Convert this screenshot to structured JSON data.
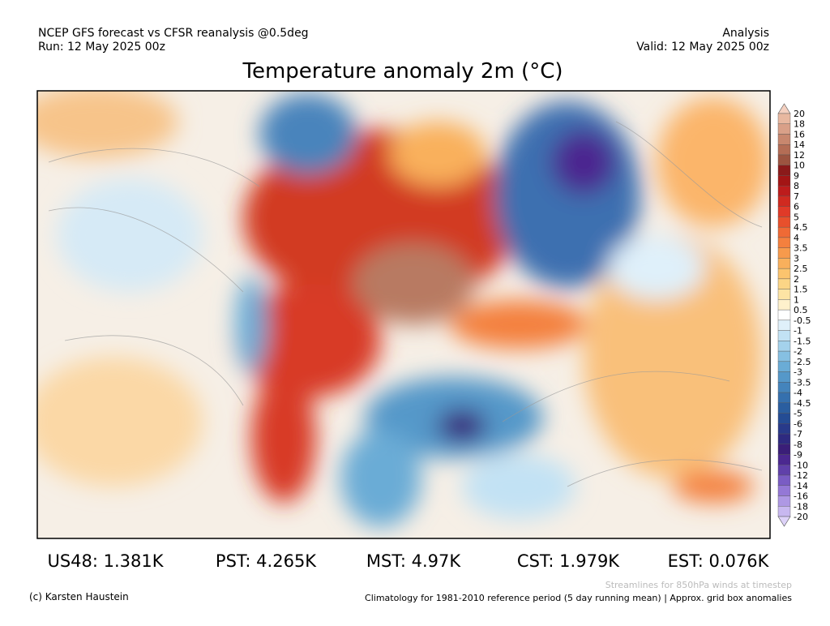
{
  "header": {
    "left": [
      "NCEP GFS forecast vs CFSR reanalysis @0.5deg",
      "Run: 12 May 2025 00z"
    ],
    "right": [
      "Analysis",
      "Valid: 12 May 2025 00z"
    ],
    "title": "Temperature anomaly 2m (°C)"
  },
  "colorbar": {
    "labels": [
      20,
      18,
      16,
      14,
      12,
      10,
      9,
      8,
      7,
      6,
      5,
      4.5,
      4,
      3.5,
      3,
      2.5,
      2,
      1.5,
      1,
      0.5,
      -0.5,
      -1,
      -1.5,
      -2,
      -2.5,
      -3,
      -3.5,
      -4,
      -4.5,
      -5,
      -6,
      -7,
      -8,
      -9,
      -10,
      -12,
      -14,
      -16,
      -18,
      -20
    ],
    "colors": [
      "#f4d0c0",
      "#e8b8a0",
      "#d9a088",
      "#c8876e",
      "#b46d55",
      "#9c5440",
      "#8b1a1a",
      "#a31515",
      "#bd1c1c",
      "#d02a20",
      "#e03a28",
      "#e8502c",
      "#ef6a35",
      "#f4803e",
      "#f79a4c",
      "#f9b05c",
      "#fbc46e",
      "#fcd586",
      "#fde4a4",
      "#fef1cc",
      "#ffffff",
      "#dff0fa",
      "#c2e2f4",
      "#a4d2ec",
      "#86c0e2",
      "#6aacd6",
      "#5598c9",
      "#4484bc",
      "#3570ae",
      "#2a5ea0",
      "#244c94",
      "#283a8a",
      "#2e2a80",
      "#3a1e78",
      "#4b2890",
      "#6040aa",
      "#7a5cc4",
      "#9478d6",
      "#ae98e4",
      "#c8b8f0",
      "#ddd2f8"
    ]
  },
  "stats": [
    "US48: 1.381K",
    "PST: 4.265K",
    "MST: 4.97K",
    "CST: 1.979K",
    "EST: 0.076K"
  ],
  "footer": {
    "credit": "(c) Karsten Haustein",
    "streamlines": "Streamlines for 850hPa winds at timestep",
    "climatology": "Climatology for 1981-2010 reference period (5 day running mean) | Approx. grid box anomalies"
  }
}
